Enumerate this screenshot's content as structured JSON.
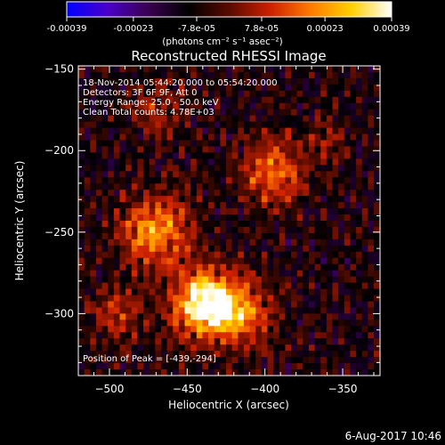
{
  "colorbar": {
    "ticks": [
      "-0.00039",
      "-0.00023",
      "-7.8e-05",
      "7.8e-05",
      "0.00023",
      "0.00039"
    ],
    "tick_values": [
      -0.00039,
      -0.00023,
      -7.8e-05,
      7.8e-05,
      0.00023,
      0.00039
    ],
    "range": [
      -0.00039,
      0.00039
    ],
    "unit_label": "(photons cm⁻² s⁻¹ asec⁻²)",
    "colors": [
      "#0000ff",
      "#4a00c8",
      "#3a0050",
      "#000000",
      "#5a0a00",
      "#cc2000",
      "#ff7a00",
      "#ffd000",
      "#ffffff"
    ]
  },
  "chart_data": {
    "type": "heatmap",
    "title": "Reconstructed RHESSI Image",
    "xlabel": "Heliocentric X (arcsec)",
    "ylabel": "Heliocentric Y (arcsec)",
    "xlim": [
      -520,
      -326
    ],
    "ylim": [
      -338,
      -148
    ],
    "xticks": [
      -500,
      -450,
      -400,
      -350
    ],
    "yticks": [
      -150,
      -200,
      -250,
      -300
    ],
    "xtick_labels": [
      "−500",
      "−450",
      "−400",
      "−350"
    ],
    "ytick_labels": [
      "−150",
      "−200",
      "−250",
      "−300"
    ],
    "annotations": [
      "18-Nov-2014 05:44:20.000 to 05:54:20.000",
      "Detectors: 3F 6F 9F, Att 0",
      "Energy Range: 25.0 - 50.0 keV",
      "Clean    Total counts: 4.78E+03"
    ],
    "peak_label": "Position of Peak = [-439,-294]",
    "peak": [
      -439,
      -294
    ],
    "sources": [
      {
        "x": -439,
        "y": -294,
        "sigma": 14,
        "amp": 1.0
      },
      {
        "x": -470,
        "y": -250,
        "sigma": 16,
        "amp": 0.65
      },
      {
        "x": -395,
        "y": -213,
        "sigma": 14,
        "amp": 0.55
      },
      {
        "x": -415,
        "y": -300,
        "sigma": 14,
        "amp": 0.55
      },
      {
        "x": -495,
        "y": -300,
        "sigma": 12,
        "amp": 0.35
      },
      {
        "x": -470,
        "y": -175,
        "sigma": 12,
        "amp": 0.25
      },
      {
        "x": -360,
        "y": -195,
        "sigma": 10,
        "amp": 0.2
      }
    ]
  },
  "footer": {
    "date": "6-Aug-2017 10:46"
  }
}
